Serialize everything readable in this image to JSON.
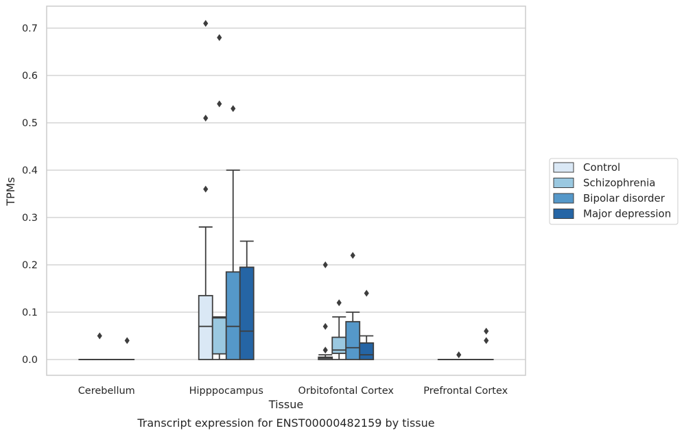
{
  "chart_data": {
    "type": "box",
    "xlabel": "Tissue",
    "ylabel": "TPMs",
    "caption": "Transcript expression for ENST00000482159 by tissue",
    "ylim": [
      -0.035,
      0.748
    ],
    "yticks": [
      "0.0",
      "0.1",
      "0.2",
      "0.3",
      "0.4",
      "0.5",
      "0.6",
      "0.7"
    ],
    "grid": "horizontal",
    "legend_position": "right",
    "categories": [
      "Cerebellum",
      "Hipppocampus",
      "Orbitofontal Cortex",
      "Prefrontal Cortex"
    ],
    "series": [
      {
        "name": "Control",
        "color": "#dae8f5",
        "boxes": [
          {
            "q1": 0.0,
            "median": 0.0,
            "q3": 0.0,
            "whisker_low": 0.0,
            "whisker_high": 0.0,
            "outliers": []
          },
          {
            "q1": 0.0,
            "median": 0.07,
            "q3": 0.135,
            "whisker_low": 0.0,
            "whisker_high": 0.28,
            "outliers": [
              0.36,
              0.51,
              0.71
            ]
          },
          {
            "q1": 0.0,
            "median": 0.003,
            "q3": 0.005,
            "whisker_low": 0.0,
            "whisker_high": 0.01,
            "outliers": [
              0.02,
              0.07,
              0.2
            ]
          },
          {
            "q1": 0.0,
            "median": 0.0,
            "q3": 0.0,
            "whisker_low": 0.0,
            "whisker_high": 0.0,
            "outliers": []
          }
        ]
      },
      {
        "name": "Schizophrenia",
        "color": "#9ac8e0",
        "boxes": [
          {
            "q1": 0.0,
            "median": 0.0,
            "q3": 0.0,
            "whisker_low": 0.0,
            "whisker_high": 0.0,
            "outliers": [
              0.05
            ]
          },
          {
            "q1": 0.012,
            "median": 0.088,
            "q3": 0.088,
            "whisker_low": 0.0,
            "whisker_high": 0.09,
            "outliers": [
              0.54,
              0.68
            ]
          },
          {
            "q1": 0.013,
            "median": 0.02,
            "q3": 0.047,
            "whisker_low": 0.0,
            "whisker_high": 0.09,
            "outliers": [
              0.12
            ]
          },
          {
            "q1": 0.0,
            "median": 0.0,
            "q3": 0.0,
            "whisker_low": 0.0,
            "whisker_high": 0.0,
            "outliers": [
              0.01
            ]
          }
        ]
      },
      {
        "name": "Bipolar disorder",
        "color": "#5598c9",
        "boxes": [
          {
            "q1": 0.0,
            "median": 0.0,
            "q3": 0.0,
            "whisker_low": 0.0,
            "whisker_high": 0.0,
            "outliers": []
          },
          {
            "q1": 0.0,
            "median": 0.07,
            "q3": 0.185,
            "whisker_low": 0.0,
            "whisker_high": 0.4,
            "outliers": [
              0.53
            ]
          },
          {
            "q1": 0.0,
            "median": 0.025,
            "q3": 0.08,
            "whisker_low": 0.0,
            "whisker_high": 0.1,
            "outliers": [
              0.22
            ]
          },
          {
            "q1": 0.0,
            "median": 0.0,
            "q3": 0.0,
            "whisker_low": 0.0,
            "whisker_high": 0.0,
            "outliers": []
          }
        ]
      },
      {
        "name": "Major depression",
        "color": "#2565a5",
        "boxes": [
          {
            "q1": 0.0,
            "median": 0.0,
            "q3": 0.0,
            "whisker_low": 0.0,
            "whisker_high": 0.0,
            "outliers": [
              0.04
            ]
          },
          {
            "q1": 0.0,
            "median": 0.06,
            "q3": 0.195,
            "whisker_low": 0.0,
            "whisker_high": 0.25,
            "outliers": []
          },
          {
            "q1": 0.0,
            "median": 0.01,
            "q3": 0.035,
            "whisker_low": 0.0,
            "whisker_high": 0.05,
            "outliers": [
              0.14
            ]
          },
          {
            "q1": 0.0,
            "median": 0.0,
            "q3": 0.0,
            "whisker_low": 0.0,
            "whisker_high": 0.0,
            "outliers": [
              0.04,
              0.06
            ]
          }
        ]
      }
    ]
  }
}
